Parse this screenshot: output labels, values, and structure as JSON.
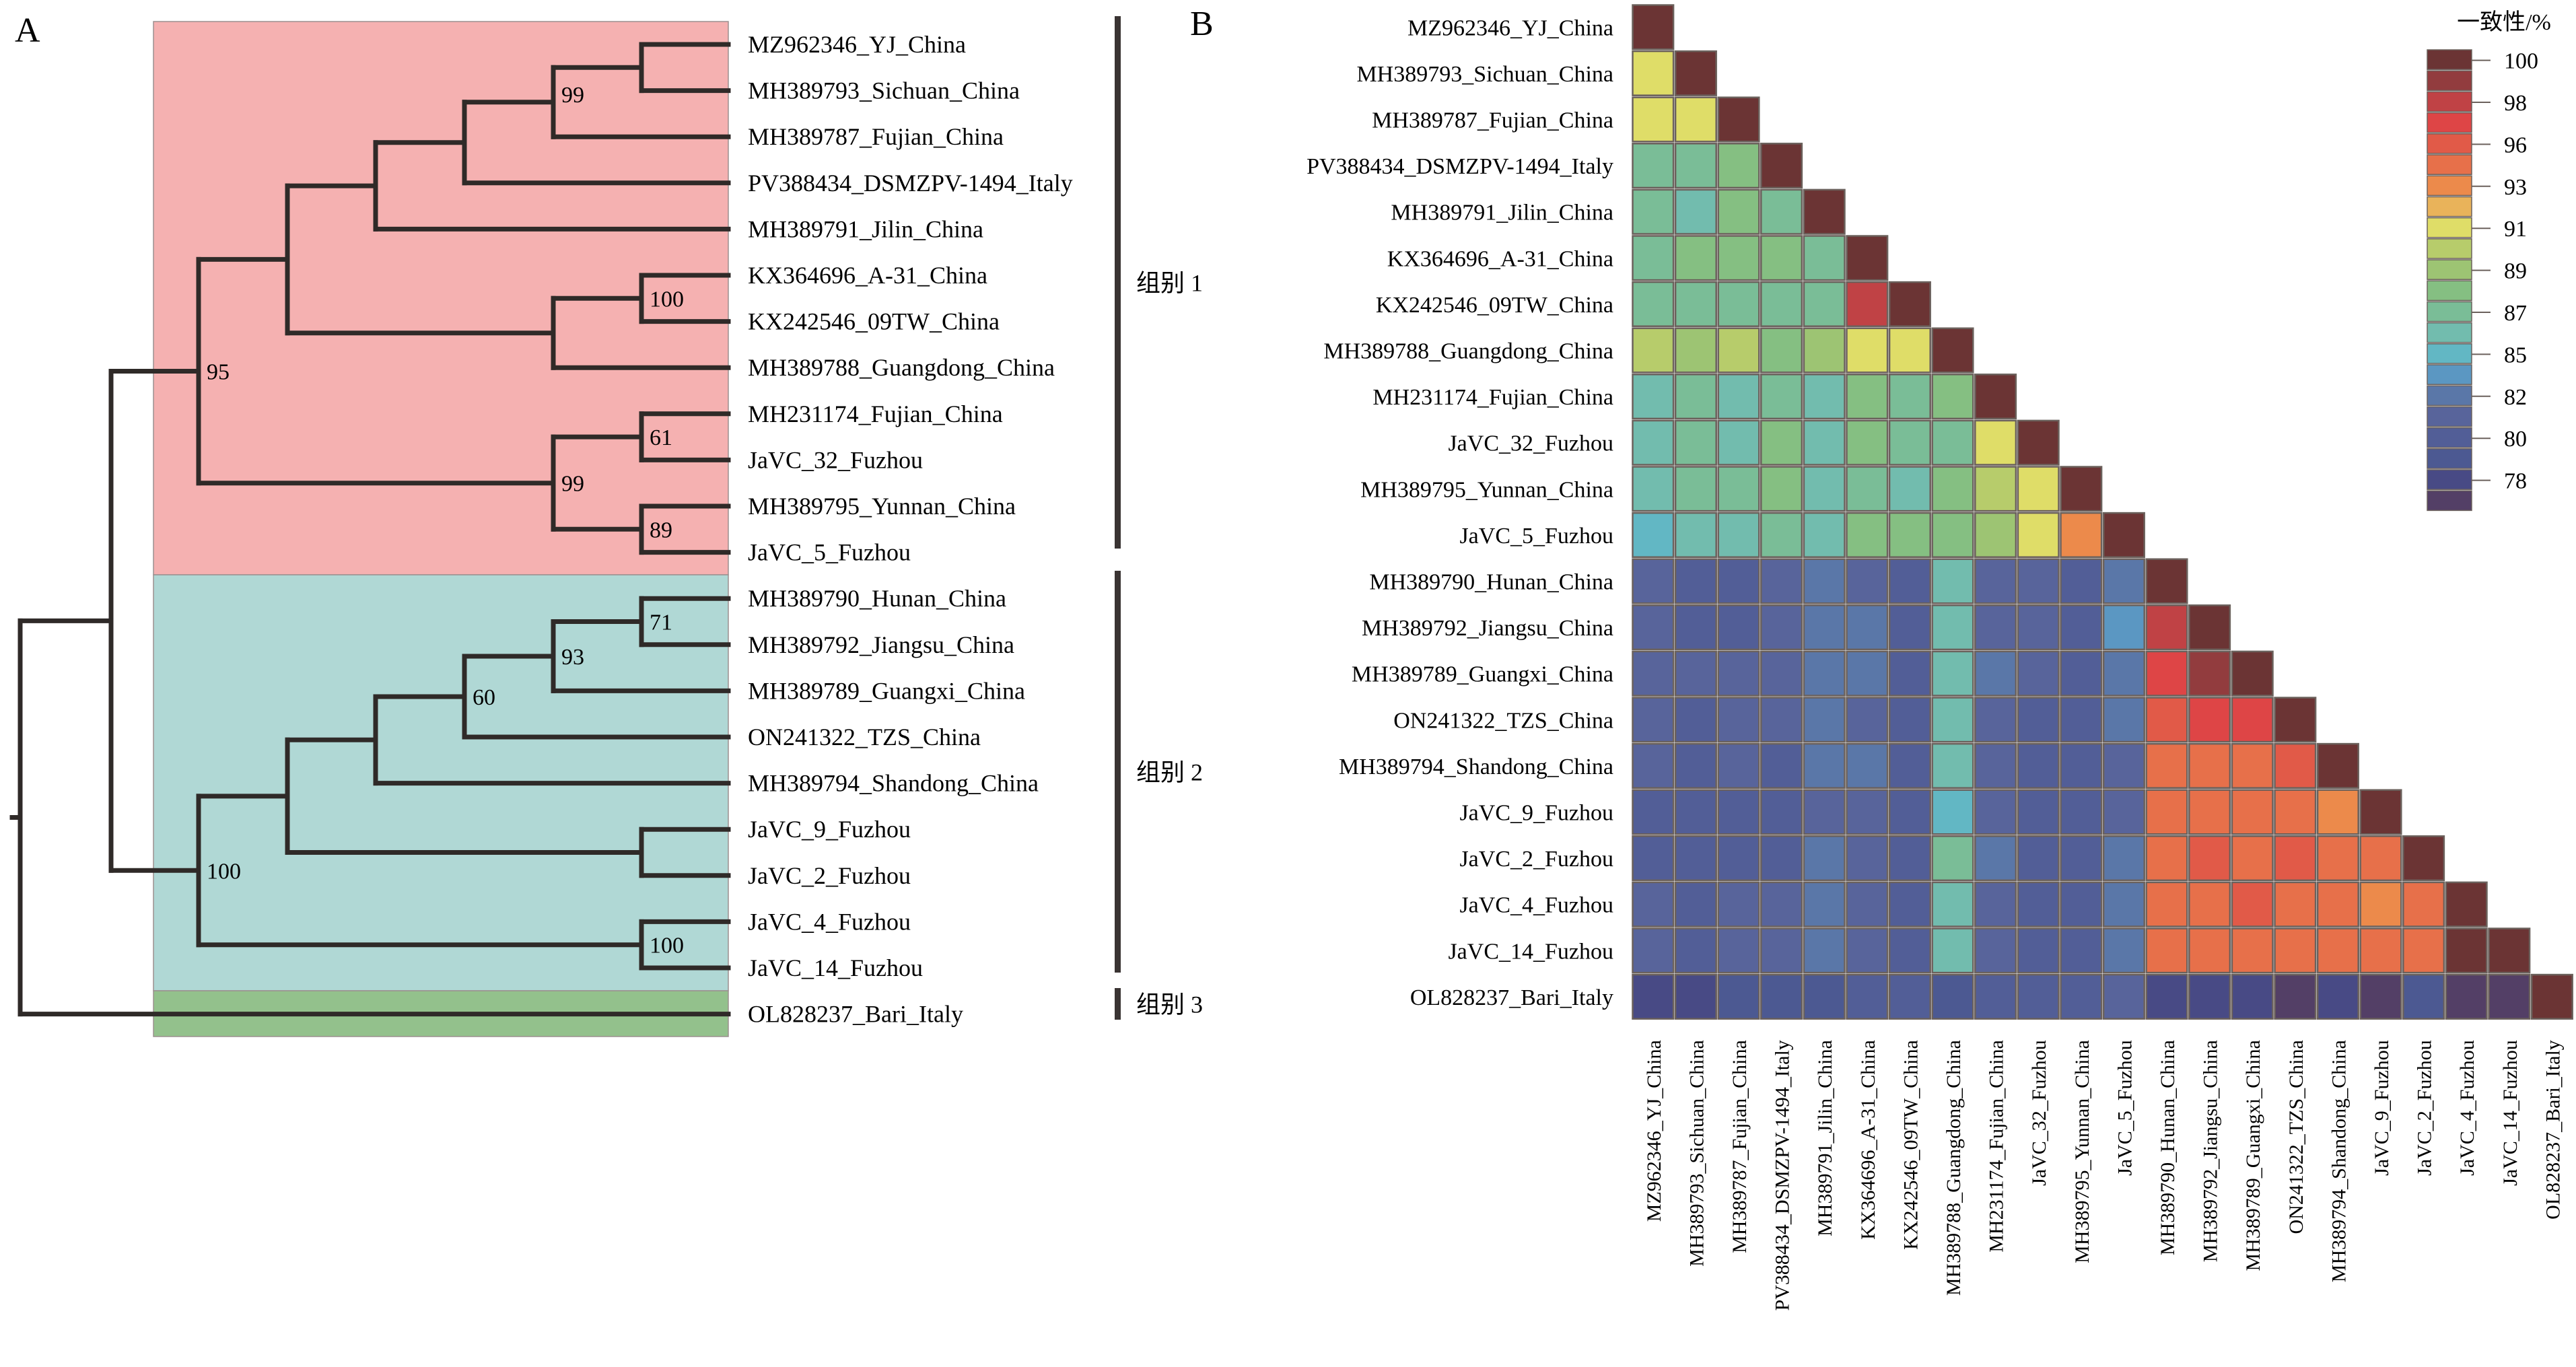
{
  "panels": {
    "a_label": "A",
    "b_label": "B"
  },
  "tree": {
    "leaves": [
      "MZ962346_YJ_China",
      "MH389793_Sichuan_China",
      "MH389787_Fujian_China",
      "PV388434_DSMZPV-1494_Italy",
      "MH389791_Jilin_China",
      "KX364696_A-31_China",
      "KX242546_09TW_China",
      "MH389788_Guangdong_China",
      "MH231174_Fujian_China",
      "JaVC_32_Fuzhou",
      "MH389795_Yunnan_China",
      "JaVC_5_Fuzhou",
      "MH389790_Hunan_China",
      "MH389792_Jiangsu_China",
      "MH389789_Guangxi_China",
      "ON241322_TZS_China",
      "MH389794_Shandong_China",
      "JaVC_9_Fuzhou",
      "JaVC_2_Fuzhou",
      "JaVC_4_Fuzhou",
      "JaVC_14_Fuzhou",
      "OL828237_Bari_Italy"
    ],
    "bootstrap": [
      "99",
      "100",
      "61",
      "89",
      "99",
      "95",
      "71",
      "93",
      "60",
      "100",
      "100"
    ],
    "groups": [
      {
        "label": "组别 1",
        "color": "#f5b1b1",
        "first": 0,
        "last": 11
      },
      {
        "label": "组别 2",
        "color": "#b0d8d5",
        "first": 12,
        "last": 20
      },
      {
        "label": "组别 3",
        "color": "#93c18c",
        "first": 21,
        "last": 21
      }
    ]
  },
  "chart_data": {
    "type": "heatmap",
    "title": "",
    "labels": [
      "MZ962346_YJ_China",
      "MH389793_Sichuan_China",
      "MH389787_Fujian_China",
      "PV388434_DSMZPV-1494_Italy",
      "MH389791_Jilin_China",
      "KX364696_A-31_China",
      "KX242546_09TW_China",
      "MH389788_Guangdong_China",
      "MH231174_Fujian_China",
      "JaVC_32_Fuzhou",
      "MH389795_Yunnan_China",
      "JaVC_5_Fuzhou",
      "MH389790_Hunan_China",
      "MH389792_Jiangsu_China",
      "MH389789_Guangxi_China",
      "ON241322_TZS_China",
      "MH389794_Shandong_China",
      "JaVC_9_Fuzhou",
      "JaVC_2_Fuzhou",
      "JaVC_4_Fuzhou",
      "JaVC_14_Fuzhou",
      "OL828237_Bari_Italy"
    ],
    "matrix_lower_triangle": [
      [
        100
      ],
      [
        91,
        100
      ],
      [
        91,
        91,
        100
      ],
      [
        87,
        87,
        88,
        100
      ],
      [
        87,
        86,
        88,
        87,
        100
      ],
      [
        87,
        88,
        88,
        88,
        87,
        100
      ],
      [
        87,
        87,
        87,
        87,
        87,
        98,
        100
      ],
      [
        90,
        89,
        90,
        88,
        89,
        91,
        91,
        100
      ],
      [
        86,
        87,
        86,
        87,
        86,
        88,
        87,
        88,
        100
      ],
      [
        85.5,
        87,
        86,
        88,
        86,
        88,
        87,
        87,
        91,
        100
      ],
      [
        85.5,
        87,
        87,
        88,
        85.5,
        87,
        86,
        88,
        90,
        91,
        100
      ],
      [
        85,
        86,
        86,
        87,
        86,
        88,
        88,
        88,
        89,
        91,
        93,
        100
      ],
      [
        81,
        80,
        80,
        81,
        82,
        81,
        80,
        86,
        81,
        81,
        80,
        82,
        100
      ],
      [
        81,
        80,
        80,
        81,
        82,
        82,
        80,
        86,
        81,
        81,
        80,
        83.5,
        98,
        100
      ],
      [
        81,
        81,
        81,
        81,
        82,
        82,
        80,
        86,
        82,
        81,
        80,
        82,
        97,
        99,
        100
      ],
      [
        81,
        80,
        81,
        81,
        82,
        81,
        80,
        86,
        81,
        80,
        80,
        82,
        96,
        97,
        97,
        100
      ],
      [
        81,
        80,
        81,
        80,
        82,
        82,
        80,
        86,
        81,
        80,
        80,
        81,
        94.5,
        95,
        95,
        96,
        100
      ],
      [
        80,
        80,
        80,
        80,
        81,
        81,
        80,
        85,
        81,
        80,
        80,
        81,
        94.5,
        94.5,
        94.5,
        94,
        93,
        100
      ],
      [
        80,
        80,
        80,
        80,
        82,
        81,
        80,
        87,
        82,
        80,
        80,
        82,
        94.5,
        96,
        94.5,
        96,
        94.5,
        94,
        100
      ],
      [
        81,
        80,
        81,
        81,
        82,
        81,
        80,
        86,
        81,
        80,
        80,
        82,
        94.5,
        95,
        96,
        95,
        94,
        93,
        94,
        100
      ],
      [
        81,
        80,
        81,
        81,
        82,
        81,
        80,
        86,
        81,
        80,
        80,
        82,
        94.5,
        95,
        95,
        95,
        94,
        94,
        94,
        100,
        100
      ],
      [
        78,
        78,
        79,
        79,
        79,
        80,
        80,
        79,
        80,
        80,
        80,
        81,
        78,
        78,
        78,
        77,
        78,
        77,
        79,
        77,
        77,
        100
      ]
    ],
    "legend": {
      "title": "一致性/%",
      "placement": "top-right",
      "ticks": [
        "100",
        "98",
        "96",
        "93",
        "91",
        "89",
        "87",
        "85",
        "82",
        "80",
        "78"
      ],
      "levels": [
        100,
        99,
        98,
        97,
        96,
        94.5,
        93,
        92,
        91,
        90,
        89,
        88,
        87,
        86,
        85,
        83.5,
        82,
        81,
        80,
        79,
        78,
        77
      ],
      "colors": [
        "#6b3434",
        "#923c3e",
        "#c04245",
        "#de4546",
        "#e15a48",
        "#e7704a",
        "#ec8a4b",
        "#e9b35a",
        "#dfdd68",
        "#b7cc6b",
        "#9dc473",
        "#85bf82",
        "#7abd97",
        "#72bcae",
        "#62b7c4",
        "#5b97c2",
        "#5a77a8",
        "#58649b",
        "#525e97",
        "#4c5992",
        "#484a85",
        "#533f66"
      ]
    },
    "value_range": [
      77,
      100
    ]
  }
}
